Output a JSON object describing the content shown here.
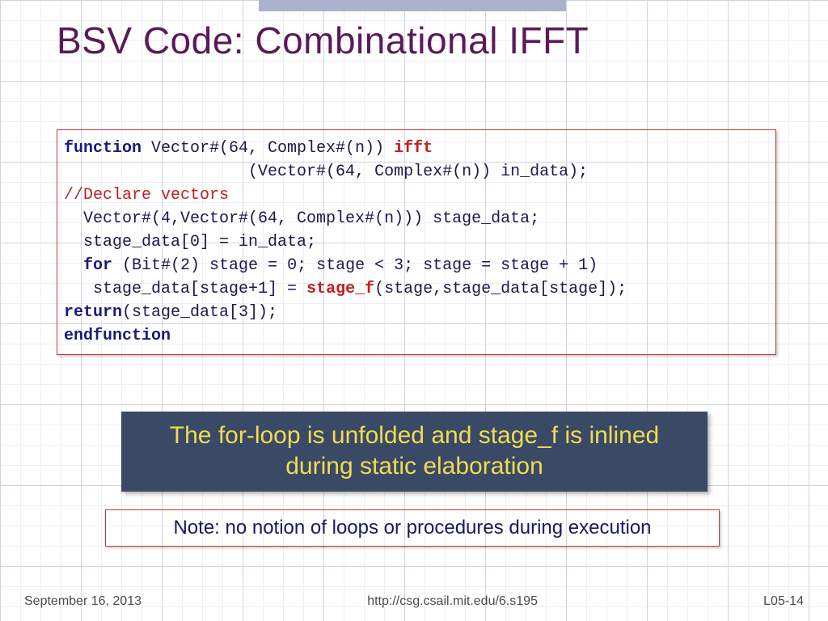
{
  "title": "BSV Code: Combinational IFFT",
  "code": {
    "l1a": "function",
    "l1b": " Vector#(64, Complex#(n)) ",
    "l1c": "ifft",
    "l2": "                   (Vector#(64, Complex#(n)) in_data);",
    "l3": "//Declare vectors",
    "l4": "  Vector#(4,Vector#(64, Complex#(n))) stage_data;",
    "l5": "",
    "l6": "  stage_data[0] = in_data;",
    "l7a": "  ",
    "l7b": "for",
    "l7c": " (Bit#(2) stage = 0; stage < 3; stage = stage + 1)",
    "l8a": "   stage_data[stage+1] = ",
    "l8b": "stage_f",
    "l8c": "(stage,stage_data[stage]);",
    "l9a": "return",
    "l9b": "(stage_data[3]);",
    "l10": "endfunction"
  },
  "callout1": "The for-loop is unfolded and  stage_f is inlined during static elaboration",
  "callout2": "Note: no notion of loops or procedures during execution",
  "footer": {
    "date": "September 16, 2013",
    "url": "http://csg.csail.mit.edu/6.s195",
    "page": "L05-14"
  },
  "colors": {
    "title": "#5a1a5a",
    "code_border": "#cc3333",
    "code_text": "#1a1a4a",
    "keyword": "#1a1a7a",
    "highlight": "#c02020",
    "callout1_bg": "#3a4a66",
    "callout1_fg": "#f0dc50",
    "grid_thin": "#d8dce8",
    "grid_bold": "#b8bdd0"
  }
}
